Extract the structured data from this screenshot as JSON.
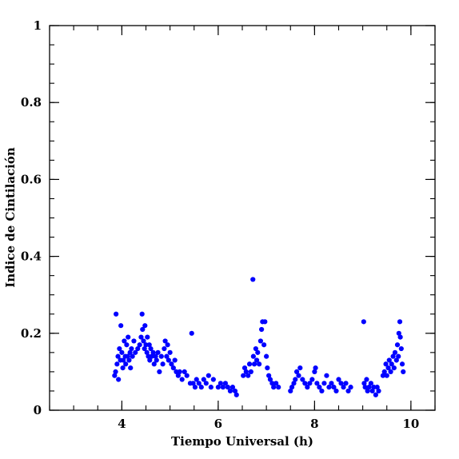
{
  "chart_data": {
    "type": "scatter",
    "title": "",
    "xlabel": "Tiempo Universal (h)",
    "ylabel": "Indice de Cintilación",
    "xlim": [
      2.5,
      10.5
    ],
    "ylim": [
      0,
      1
    ],
    "x_major_ticks": [
      4,
      6,
      8,
      10
    ],
    "x_tick_labels": [
      "4",
      "6",
      "8",
      "10"
    ],
    "x_minor_step": 0.5,
    "y_major_ticks": [
      0,
      0.2,
      0.4,
      0.6,
      0.8,
      1
    ],
    "y_tick_labels": [
      "0",
      "0.2",
      "0.4",
      "0.6",
      "0.8",
      "1"
    ],
    "y_minor_step": 0.05,
    "grid": false,
    "point_color": "#0000ff",
    "series": [
      {
        "points": [
          [
            3.85,
            0.09
          ],
          [
            3.87,
            0.1
          ],
          [
            3.88,
            0.25
          ],
          [
            3.9,
            0.12
          ],
          [
            3.92,
            0.14
          ],
          [
            3.93,
            0.08
          ],
          [
            3.95,
            0.16
          ],
          [
            3.97,
            0.13
          ],
          [
            3.98,
            0.22
          ],
          [
            4.0,
            0.15
          ],
          [
            4.02,
            0.11
          ],
          [
            4.03,
            0.13
          ],
          [
            4.05,
            0.18
          ],
          [
            4.07,
            0.14
          ],
          [
            4.08,
            0.12
          ],
          [
            4.1,
            0.17
          ],
          [
            4.12,
            0.14
          ],
          [
            4.13,
            0.19
          ],
          [
            4.15,
            0.13
          ],
          [
            4.17,
            0.15
          ],
          [
            4.18,
            0.11
          ],
          [
            4.2,
            0.16
          ],
          [
            4.22,
            0.14
          ],
          [
            4.25,
            0.18
          ],
          [
            4.28,
            0.15
          ],
          [
            4.33,
            0.16
          ],
          [
            4.37,
            0.17
          ],
          [
            4.4,
            0.19
          ],
          [
            4.42,
            0.25
          ],
          [
            4.43,
            0.21
          ],
          [
            4.45,
            0.18
          ],
          [
            4.47,
            0.16
          ],
          [
            4.48,
            0.22
          ],
          [
            4.5,
            0.17
          ],
          [
            4.52,
            0.15
          ],
          [
            4.53,
            0.19
          ],
          [
            4.55,
            0.14
          ],
          [
            4.57,
            0.17
          ],
          [
            4.58,
            0.13
          ],
          [
            4.6,
            0.16
          ],
          [
            4.62,
            0.14
          ],
          [
            4.65,
            0.15
          ],
          [
            4.67,
            0.12
          ],
          [
            4.7,
            0.14
          ],
          [
            4.72,
            0.13
          ],
          [
            4.75,
            0.15
          ],
          [
            4.78,
            0.1
          ],
          [
            4.82,
            0.14
          ],
          [
            4.85,
            0.12
          ],
          [
            4.88,
            0.16
          ],
          [
            4.9,
            0.18
          ],
          [
            4.93,
            0.14
          ],
          [
            4.95,
            0.17
          ],
          [
            4.97,
            0.13
          ],
          [
            5.0,
            0.15
          ],
          [
            5.03,
            0.12
          ],
          [
            5.07,
            0.11
          ],
          [
            5.1,
            0.13
          ],
          [
            5.13,
            0.1
          ],
          [
            5.17,
            0.09
          ],
          [
            5.2,
            0.1
          ],
          [
            5.25,
            0.08
          ],
          [
            5.3,
            0.1
          ],
          [
            5.35,
            0.09
          ],
          [
            5.42,
            0.07
          ],
          [
            5.45,
            0.2
          ],
          [
            5.48,
            0.07
          ],
          [
            5.52,
            0.06
          ],
          [
            5.55,
            0.08
          ],
          [
            5.6,
            0.07
          ],
          [
            5.65,
            0.06
          ],
          [
            5.7,
            0.08
          ],
          [
            5.75,
            0.07
          ],
          [
            5.8,
            0.09
          ],
          [
            5.85,
            0.06
          ],
          [
            5.9,
            0.08
          ],
          [
            6.0,
            0.06
          ],
          [
            6.05,
            0.07
          ],
          [
            6.1,
            0.06
          ],
          [
            6.15,
            0.07
          ],
          [
            6.2,
            0.06
          ],
          [
            6.25,
            0.05
          ],
          [
            6.3,
            0.06
          ],
          [
            6.35,
            0.05
          ],
          [
            6.38,
            0.04
          ],
          [
            6.52,
            0.09
          ],
          [
            6.55,
            0.11
          ],
          [
            6.58,
            0.1
          ],
          [
            6.62,
            0.09
          ],
          [
            6.65,
            0.12
          ],
          [
            6.68,
            0.1
          ],
          [
            6.72,
            0.34
          ],
          [
            6.73,
            0.14
          ],
          [
            6.75,
            0.12
          ],
          [
            6.78,
            0.16
          ],
          [
            6.8,
            0.13
          ],
          [
            6.82,
            0.15
          ],
          [
            6.85,
            0.12
          ],
          [
            6.88,
            0.18
          ],
          [
            6.9,
            0.21
          ],
          [
            6.92,
            0.23
          ],
          [
            6.95,
            0.17
          ],
          [
            6.97,
            0.23
          ],
          [
            7.0,
            0.14
          ],
          [
            7.02,
            0.11
          ],
          [
            7.05,
            0.09
          ],
          [
            7.08,
            0.08
          ],
          [
            7.12,
            0.07
          ],
          [
            7.15,
            0.06
          ],
          [
            7.2,
            0.07
          ],
          [
            7.25,
            0.06
          ],
          [
            7.5,
            0.05
          ],
          [
            7.53,
            0.06
          ],
          [
            7.57,
            0.07
          ],
          [
            7.6,
            0.08
          ],
          [
            7.63,
            0.1
          ],
          [
            7.67,
            0.09
          ],
          [
            7.7,
            0.11
          ],
          [
            7.75,
            0.08
          ],
          [
            7.8,
            0.07
          ],
          [
            7.85,
            0.06
          ],
          [
            7.9,
            0.07
          ],
          [
            7.95,
            0.08
          ],
          [
            8.0,
            0.1
          ],
          [
            8.02,
            0.11
          ],
          [
            8.05,
            0.07
          ],
          [
            8.1,
            0.06
          ],
          [
            8.15,
            0.05
          ],
          [
            8.2,
            0.07
          ],
          [
            8.25,
            0.09
          ],
          [
            8.3,
            0.06
          ],
          [
            8.35,
            0.07
          ],
          [
            8.4,
            0.06
          ],
          [
            8.45,
            0.05
          ],
          [
            8.5,
            0.08
          ],
          [
            8.55,
            0.07
          ],
          [
            8.6,
            0.06
          ],
          [
            8.65,
            0.07
          ],
          [
            8.7,
            0.05
          ],
          [
            8.75,
            0.06
          ],
          [
            9.02,
            0.23
          ],
          [
            9.03,
            0.07
          ],
          [
            9.05,
            0.06
          ],
          [
            9.08,
            0.08
          ],
          [
            9.1,
            0.05
          ],
          [
            9.13,
            0.06
          ],
          [
            9.17,
            0.07
          ],
          [
            9.2,
            0.05
          ],
          [
            9.23,
            0.06
          ],
          [
            9.27,
            0.04
          ],
          [
            9.3,
            0.06
          ],
          [
            9.33,
            0.05
          ],
          [
            9.42,
            0.09
          ],
          [
            9.45,
            0.1
          ],
          [
            9.48,
            0.12
          ],
          [
            9.5,
            0.09
          ],
          [
            9.53,
            0.11
          ],
          [
            9.55,
            0.13
          ],
          [
            9.58,
            0.1
          ],
          [
            9.6,
            0.12
          ],
          [
            9.63,
            0.14
          ],
          [
            9.65,
            0.11
          ],
          [
            9.67,
            0.15
          ],
          [
            9.7,
            0.13
          ],
          [
            9.72,
            0.17
          ],
          [
            9.74,
            0.14
          ],
          [
            9.75,
            0.2
          ],
          [
            9.77,
            0.23
          ],
          [
            9.78,
            0.19
          ],
          [
            9.8,
            0.16
          ],
          [
            9.82,
            0.12
          ],
          [
            9.84,
            0.1
          ]
        ]
      }
    ]
  }
}
